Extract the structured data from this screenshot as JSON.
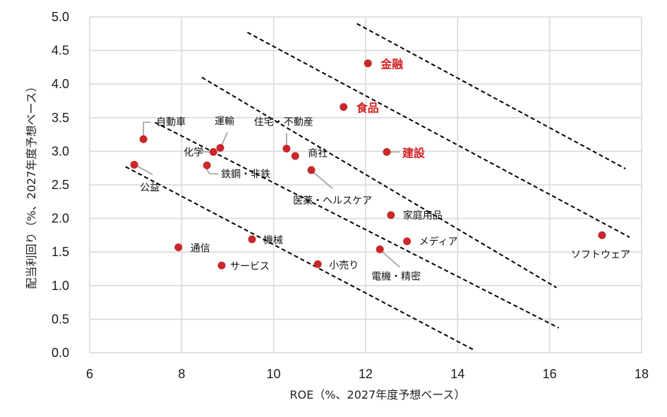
{
  "chart_data": {
    "type": "scatter",
    "title": "",
    "xlabel": "ROE（%、2027年度予想ベース）",
    "ylabel": "配当利回り（%、2027年度予想ベース）",
    "xlim": [
      6,
      18
    ],
    "ylim": [
      0,
      5.0
    ],
    "x_ticks": [
      "6",
      "8",
      "10",
      "12",
      "14",
      "16",
      "18"
    ],
    "y_ticks": [
      "0.0",
      "0.5",
      "1.0",
      "1.5",
      "2.0",
      "2.5",
      "3.0",
      "3.5",
      "4.0",
      "4.5",
      "5.0"
    ],
    "grid": true,
    "legend": null,
    "point_color": "#c8282a",
    "highlight_color": "#d42020",
    "points": [
      {
        "label": "金融",
        "x": 12.05,
        "y": 4.31,
        "highlight": true
      },
      {
        "label": "食品",
        "x": 11.52,
        "y": 3.66,
        "highlight": true
      },
      {
        "label": "建設",
        "x": 12.46,
        "y": 2.99,
        "highlight": true
      },
      {
        "label": "自動車",
        "x": 7.17,
        "y": 3.18,
        "highlight": false
      },
      {
        "label": "運輸",
        "x": 8.84,
        "y": 3.05,
        "highlight": false
      },
      {
        "label": "化学",
        "x": 8.69,
        "y": 2.99,
        "highlight": false
      },
      {
        "label": "鉄鋼・非鉄",
        "x": 8.55,
        "y": 2.79,
        "highlight": false
      },
      {
        "label": "公益",
        "x": 6.97,
        "y": 2.8,
        "highlight": false
      },
      {
        "label": "住宅・不動産",
        "x": 10.28,
        "y": 3.04,
        "highlight": false
      },
      {
        "label": "商社",
        "x": 10.47,
        "y": 2.93,
        "highlight": false
      },
      {
        "label": "医薬・ヘルスケア",
        "x": 10.82,
        "y": 2.72,
        "highlight": false
      },
      {
        "label": "家庭用品",
        "x": 12.55,
        "y": 2.05,
        "highlight": false
      },
      {
        "label": "メディア",
        "x": 12.9,
        "y": 1.66,
        "highlight": false
      },
      {
        "label": "電機・精密",
        "x": 12.31,
        "y": 1.54,
        "highlight": false
      },
      {
        "label": "小売り",
        "x": 10.96,
        "y": 1.32,
        "highlight": false
      },
      {
        "label": "機械",
        "x": 9.53,
        "y": 1.69,
        "highlight": false
      },
      {
        "label": "通信",
        "x": 7.93,
        "y": 1.57,
        "highlight": false
      },
      {
        "label": "サービス",
        "x": 8.87,
        "y": 1.3,
        "highlight": false
      },
      {
        "label": "ソフトウェア",
        "x": 17.14,
        "y": 1.75,
        "highlight": false
      }
    ],
    "reference_lines": [
      {
        "style": "dashed",
        "x1": 6.78,
        "y1": 2.77,
        "x2": 14.36,
        "y2": 0.04
      },
      {
        "style": "dashed",
        "x1": 7.42,
        "y1": 3.43,
        "x2": 16.2,
        "y2": 0.37
      },
      {
        "style": "dashed",
        "x1": 8.44,
        "y1": 4.1,
        "x2": 16.15,
        "y2": 0.97
      },
      {
        "style": "dashed",
        "x1": 9.43,
        "y1": 4.77,
        "x2": 17.74,
        "y2": 1.72
      },
      {
        "style": "dashed",
        "x1": 11.81,
        "y1": 4.9,
        "x2": 17.65,
        "y2": 2.74
      }
    ]
  },
  "labels": {
    "金融": "金融",
    "食品": "食品",
    "建設": "建設",
    "自動車": "自動車",
    "運輸": "運輸",
    "化学": "化学",
    "鉄鋼・非鉄": "鉄鋼・非鉄",
    "公益": "公益",
    "住宅・不動産": "住宅・不動産",
    "商社": "商社",
    "医薬・ヘルスケア": "医薬・ヘルスケア",
    "家庭用品": "家庭用品",
    "メディア": "メディア",
    "電機・精密": "電機・精密",
    "小売り": "小売り",
    "機械": "機械",
    "通信": "通信",
    "サービス": "サービス",
    "ソフトウェア": "ソフトウェア"
  }
}
